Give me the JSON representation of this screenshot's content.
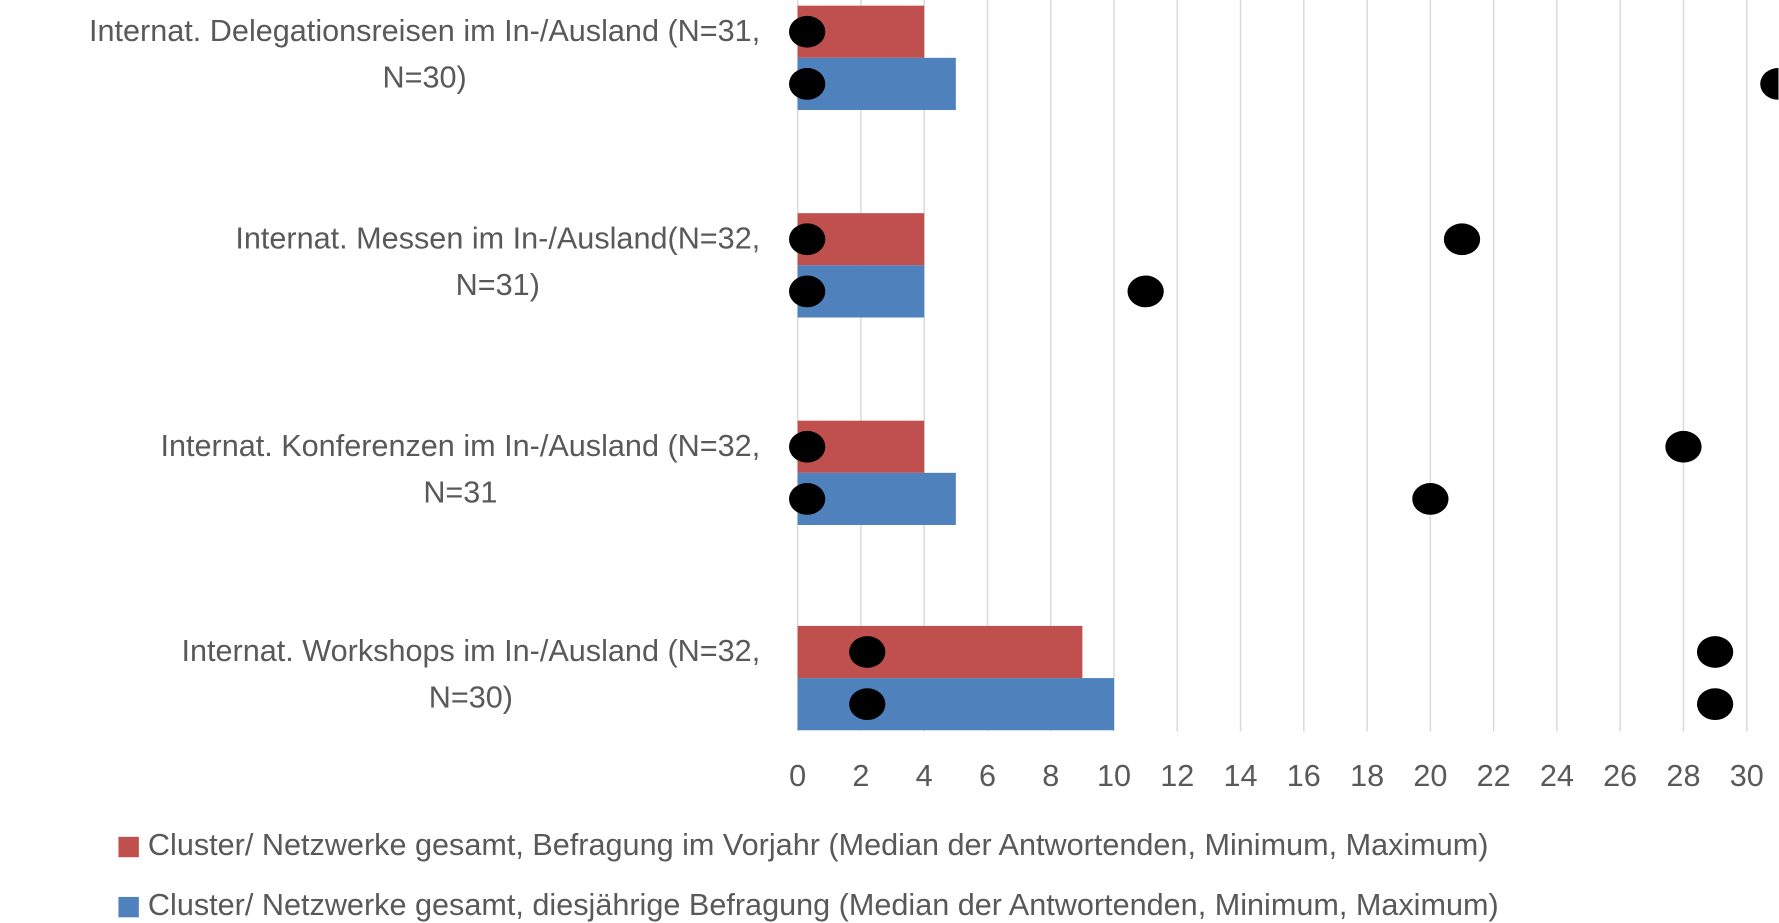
{
  "chart_data": {
    "type": "bar",
    "orientation": "horizontal",
    "categories": [
      [
        "Internat. Delegationsreisen im In-/Ausland (N=31,",
        "N=30)"
      ],
      [
        "Internat. Messen im In-/Ausland(N=32,",
        "N=31)"
      ],
      [
        "Internat. Konferenzen im In-/Ausland (N=32,",
        "N=31"
      ],
      [
        "Internat. Workshops im In-/Ausland  (N=32,",
        "N=30)"
      ]
    ],
    "series": [
      {
        "name": "Cluster/ Netzwerke gesamt, Befragung im Vorjahr (Median der Antwortenden, Minimum, Maximum)",
        "color": "#c0504d",
        "values": [
          4,
          4,
          4,
          9
        ],
        "min": [
          0.3,
          0.3,
          0.3,
          2.2
        ],
        "max": [
          null,
          21,
          28,
          29
        ]
      },
      {
        "name": "Cluster/ Netzwerke gesamt, diesjährige Befragung (Median der Antwortenden, Minimum, Maximum)",
        "color": "#4f81bd",
        "values": [
          5,
          4,
          5,
          10
        ],
        "min": [
          0.3,
          0.3,
          0.3,
          2.2
        ],
        "max": [
          31,
          11,
          20,
          29
        ]
      }
    ],
    "marker_color": "#000000",
    "xlim": [
      0,
      30
    ],
    "xticks": [
      0,
      2,
      4,
      6,
      8,
      10,
      12,
      14,
      16,
      18,
      20,
      22,
      24,
      26,
      28,
      30
    ],
    "grid": true,
    "legend": "bottom"
  }
}
